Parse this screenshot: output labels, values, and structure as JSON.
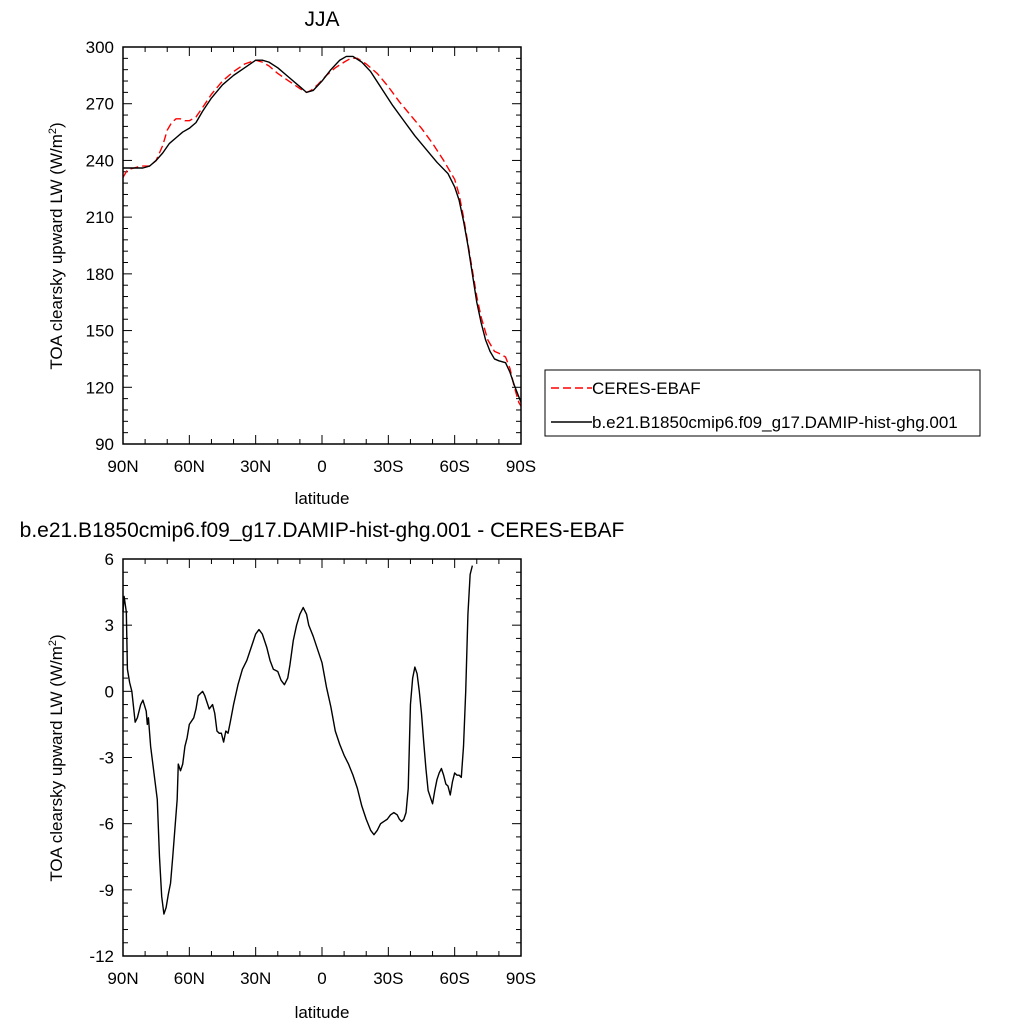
{
  "chart_data": [
    {
      "type": "line",
      "title": "JJA",
      "xlabel": "latitude",
      "ylabel": "TOA clearsky upward LW (W/m²)",
      "xlim": [
        90,
        -90
      ],
      "ylim": [
        90,
        300
      ],
      "x_tick_values": [
        90,
        60,
        30,
        0,
        -30,
        -60,
        -90
      ],
      "x_tick_labels": [
        "90N",
        "60N",
        "30N",
        "0",
        "30S",
        "60S",
        "90S"
      ],
      "y_tick_values": [
        90,
        120,
        150,
        180,
        210,
        240,
        270,
        300
      ],
      "y_tick_labels": [
        "90",
        "120",
        "150",
        "180",
        "210",
        "240",
        "270",
        "300"
      ],
      "legend_position": "right",
      "series": [
        {
          "name": "CERES-EBAF",
          "color": "#ff0000",
          "style": "dashed",
          "points": [
            [
              90,
              231
            ],
            [
              88,
              235
            ],
            [
              85,
              236
            ],
            [
              82,
              237
            ],
            [
              78,
              237
            ],
            [
              75,
              240
            ],
            [
              72,
              248
            ],
            [
              70,
              256
            ],
            [
              68,
              260
            ],
            [
              66,
              262
            ],
            [
              64,
              262
            ],
            [
              62,
              261
            ],
            [
              60,
              261
            ],
            [
              57,
              263
            ],
            [
              54,
              268
            ],
            [
              50,
              275
            ],
            [
              45,
              282
            ],
            [
              40,
              287
            ],
            [
              35,
              291
            ],
            [
              30,
              293
            ],
            [
              27,
              292
            ],
            [
              24,
              290
            ],
            [
              20,
              286
            ],
            [
              15,
              282
            ],
            [
              10,
              278
            ],
            [
              7,
              276
            ],
            [
              5,
              277
            ],
            [
              2,
              280
            ],
            [
              -2,
              285
            ],
            [
              -6,
              289
            ],
            [
              -10,
              292
            ],
            [
              -13,
              294
            ],
            [
              -16,
              294
            ],
            [
              -20,
              291
            ],
            [
              -25,
              286
            ],
            [
              -30,
              279
            ],
            [
              -35,
              271
            ],
            [
              -40,
              264
            ],
            [
              -45,
              257
            ],
            [
              -50,
              249
            ],
            [
              -55,
              240
            ],
            [
              -60,
              230
            ],
            [
              -62,
              222
            ],
            [
              -64,
              210
            ],
            [
              -66,
              196
            ],
            [
              -68,
              182
            ],
            [
              -70,
              168
            ],
            [
              -72,
              157
            ],
            [
              -75,
              145
            ],
            [
              -78,
              139
            ],
            [
              -80,
              138
            ],
            [
              -83,
              136
            ],
            [
              -85,
              130
            ],
            [
              -87,
              120
            ],
            [
              -89,
              112
            ],
            [
              -90,
              110
            ]
          ]
        },
        {
          "name": "b.e21.B1850cmip6.f09_g17.DAMIP-hist-ghg.001",
          "color": "#000000",
          "style": "solid",
          "points": [
            [
              90,
              236
            ],
            [
              87,
              236
            ],
            [
              84,
              236
            ],
            [
              81,
              236
            ],
            [
              78,
              237
            ],
            [
              75,
              240
            ],
            [
              72,
              244
            ],
            [
              69,
              249
            ],
            [
              66,
              252
            ],
            [
              63,
              255
            ],
            [
              60,
              257
            ],
            [
              57,
              260
            ],
            [
              54,
              266
            ],
            [
              50,
              273
            ],
            [
              45,
              280
            ],
            [
              40,
              285
            ],
            [
              35,
              289
            ],
            [
              30,
              293
            ],
            [
              27,
              293
            ],
            [
              24,
              292
            ],
            [
              20,
              289
            ],
            [
              15,
              284
            ],
            [
              10,
              279
            ],
            [
              7,
              276
            ],
            [
              4,
              277
            ],
            [
              0,
              282
            ],
            [
              -4,
              288
            ],
            [
              -8,
              293
            ],
            [
              -11,
              295
            ],
            [
              -14,
              295
            ],
            [
              -18,
              292
            ],
            [
              -22,
              287
            ],
            [
              -27,
              278
            ],
            [
              -32,
              269
            ],
            [
              -37,
              261
            ],
            [
              -42,
              253
            ],
            [
              -47,
              246
            ],
            [
              -52,
              239
            ],
            [
              -57,
              233
            ],
            [
              -60,
              226
            ],
            [
              -62,
              219
            ],
            [
              -64,
              208
            ],
            [
              -66,
              195
            ],
            [
              -68,
              180
            ],
            [
              -70,
              165
            ],
            [
              -72,
              154
            ],
            [
              -74,
              145
            ],
            [
              -76,
              139
            ],
            [
              -78,
              135
            ],
            [
              -80,
              134
            ],
            [
              -83,
              133
            ],
            [
              -85,
              128
            ],
            [
              -87,
              121
            ],
            [
              -89,
              115
            ],
            [
              -90,
              112
            ]
          ]
        }
      ]
    },
    {
      "type": "line",
      "title": "b.e21.B1850cmip6.f09_g17.DAMIP-hist-ghg.001 - CERES-EBAF",
      "xlabel": "latitude",
      "ylabel": "TOA clearsky upward LW (W/m²)",
      "xlim": [
        90,
        -90
      ],
      "ylim": [
        -12,
        6
      ],
      "x_tick_values": [
        90,
        60,
        30,
        0,
        -30,
        -60,
        -90
      ],
      "x_tick_labels": [
        "90N",
        "60N",
        "30N",
        "0",
        "30S",
        "60S",
        "90S"
      ],
      "y_tick_values": [
        -12,
        -9,
        -6,
        -3,
        0,
        3,
        6
      ],
      "y_tick_labels": [
        "-12",
        "-9",
        "-6",
        "-3",
        "0",
        "3",
        "6"
      ],
      "series": [
        {
          "color": "#000000",
          "style": "solid",
          "points": [
            [
              90,
              3.6
            ],
            [
              89.5,
              4.3
            ],
            [
              88.5,
              3.6
            ],
            [
              88,
              1
            ],
            [
              87,
              0.4
            ],
            [
              86,
              0
            ],
            [
              84.5,
              -1.4
            ],
            [
              83.5,
              -1.2
            ],
            [
              82,
              -0.6
            ],
            [
              81,
              -0.4
            ],
            [
              79.5,
              -0.9
            ],
            [
              79,
              -1.5
            ],
            [
              78.5,
              -1.2
            ],
            [
              77.5,
              -2.5
            ],
            [
              76,
              -3.7
            ],
            [
              74.5,
              -4.9
            ],
            [
              73.5,
              -7.5
            ],
            [
              72.5,
              -9.3
            ],
            [
              71.5,
              -10.1
            ],
            [
              70.5,
              -9.8
            ],
            [
              69.5,
              -9.2
            ],
            [
              68.5,
              -8.7
            ],
            [
              67.5,
              -7.5
            ],
            [
              66.5,
              -6.2
            ],
            [
              65.5,
              -4.9
            ],
            [
              65,
              -3.3
            ],
            [
              64,
              -3.6
            ],
            [
              63,
              -3.3
            ],
            [
              62,
              -2.5
            ],
            [
              61,
              -2.1
            ],
            [
              60,
              -1.5
            ],
            [
              58,
              -1.2
            ],
            [
              57,
              -0.8
            ],
            [
              56,
              -0.2
            ],
            [
              54,
              0
            ],
            [
              53,
              -0.2
            ],
            [
              51,
              -0.8
            ],
            [
              49.5,
              -0.6
            ],
            [
              48.5,
              -1
            ],
            [
              47.5,
              -1.8
            ],
            [
              46.5,
              -1.9
            ],
            [
              45.5,
              -1.9
            ],
            [
              44.5,
              -2.3
            ],
            [
              43.5,
              -1.8
            ],
            [
              42.5,
              -1.9
            ],
            [
              41.5,
              -1.4
            ],
            [
              40,
              -0.6
            ],
            [
              38,
              0.3
            ],
            [
              36,
              1
            ],
            [
              34,
              1.4
            ],
            [
              32,
              2
            ],
            [
              30,
              2.6
            ],
            [
              28.5,
              2.8
            ],
            [
              27,
              2.6
            ],
            [
              25,
              2
            ],
            [
              23.5,
              1.4
            ],
            [
              22,
              1
            ],
            [
              20,
              0.9
            ],
            [
              18.5,
              0.5
            ],
            [
              17,
              0.3
            ],
            [
              15.5,
              0.6
            ],
            [
              14.5,
              1.2
            ],
            [
              13,
              2.3
            ],
            [
              11.5,
              3
            ],
            [
              10,
              3.5
            ],
            [
              8.5,
              3.8
            ],
            [
              7,
              3.5
            ],
            [
              6,
              3
            ],
            [
              4,
              2.5
            ],
            [
              2,
              1.9
            ],
            [
              0,
              1.3
            ],
            [
              -2,
              0.2
            ],
            [
              -4,
              -0.7
            ],
            [
              -6,
              -1.8
            ],
            [
              -8,
              -2.4
            ],
            [
              -10,
              -2.9
            ],
            [
              -12,
              -3.3
            ],
            [
              -14,
              -3.8
            ],
            [
              -16,
              -4.4
            ],
            [
              -18,
              -5.2
            ],
            [
              -20,
              -5.8
            ],
            [
              -22,
              -6.3
            ],
            [
              -23.5,
              -6.5
            ],
            [
              -25,
              -6.3
            ],
            [
              -26.5,
              -6
            ],
            [
              -28,
              -5.9
            ],
            [
              -29.5,
              -5.8
            ],
            [
              -31,
              -5.6
            ],
            [
              -32.5,
              -5.5
            ],
            [
              -34,
              -5.6
            ],
            [
              -35,
              -5.8
            ],
            [
              -36,
              -5.9
            ],
            [
              -37,
              -5.8
            ],
            [
              -38,
              -5.5
            ],
            [
              -39,
              -4.4
            ],
            [
              -39.5,
              -2.5
            ],
            [
              -40,
              -0.6
            ],
            [
              -41,
              0.6
            ],
            [
              -42,
              1.1
            ],
            [
              -43,
              0.8
            ],
            [
              -44,
              0
            ],
            [
              -45,
              -1
            ],
            [
              -46,
              -2.3
            ],
            [
              -47,
              -3.5
            ],
            [
              -48,
              -4.5
            ],
            [
              -49,
              -4.8
            ],
            [
              -50,
              -5.1
            ],
            [
              -51,
              -4.5
            ],
            [
              -52,
              -4
            ],
            [
              -53,
              -3.7
            ],
            [
              -54,
              -3.5
            ],
            [
              -55,
              -3.8
            ],
            [
              -56,
              -4.2
            ],
            [
              -57,
              -4.3
            ],
            [
              -58,
              -4.7
            ],
            [
              -59,
              -4.1
            ],
            [
              -60,
              -3.7
            ],
            [
              -61,
              -3.8
            ],
            [
              -62,
              -3.8
            ],
            [
              -63,
              -3.9
            ],
            [
              -64,
              -2.5
            ],
            [
              -65,
              0
            ],
            [
              -66,
              3.5
            ],
            [
              -67,
              5.3
            ],
            [
              -68,
              5.7
            ]
          ]
        }
      ]
    }
  ]
}
